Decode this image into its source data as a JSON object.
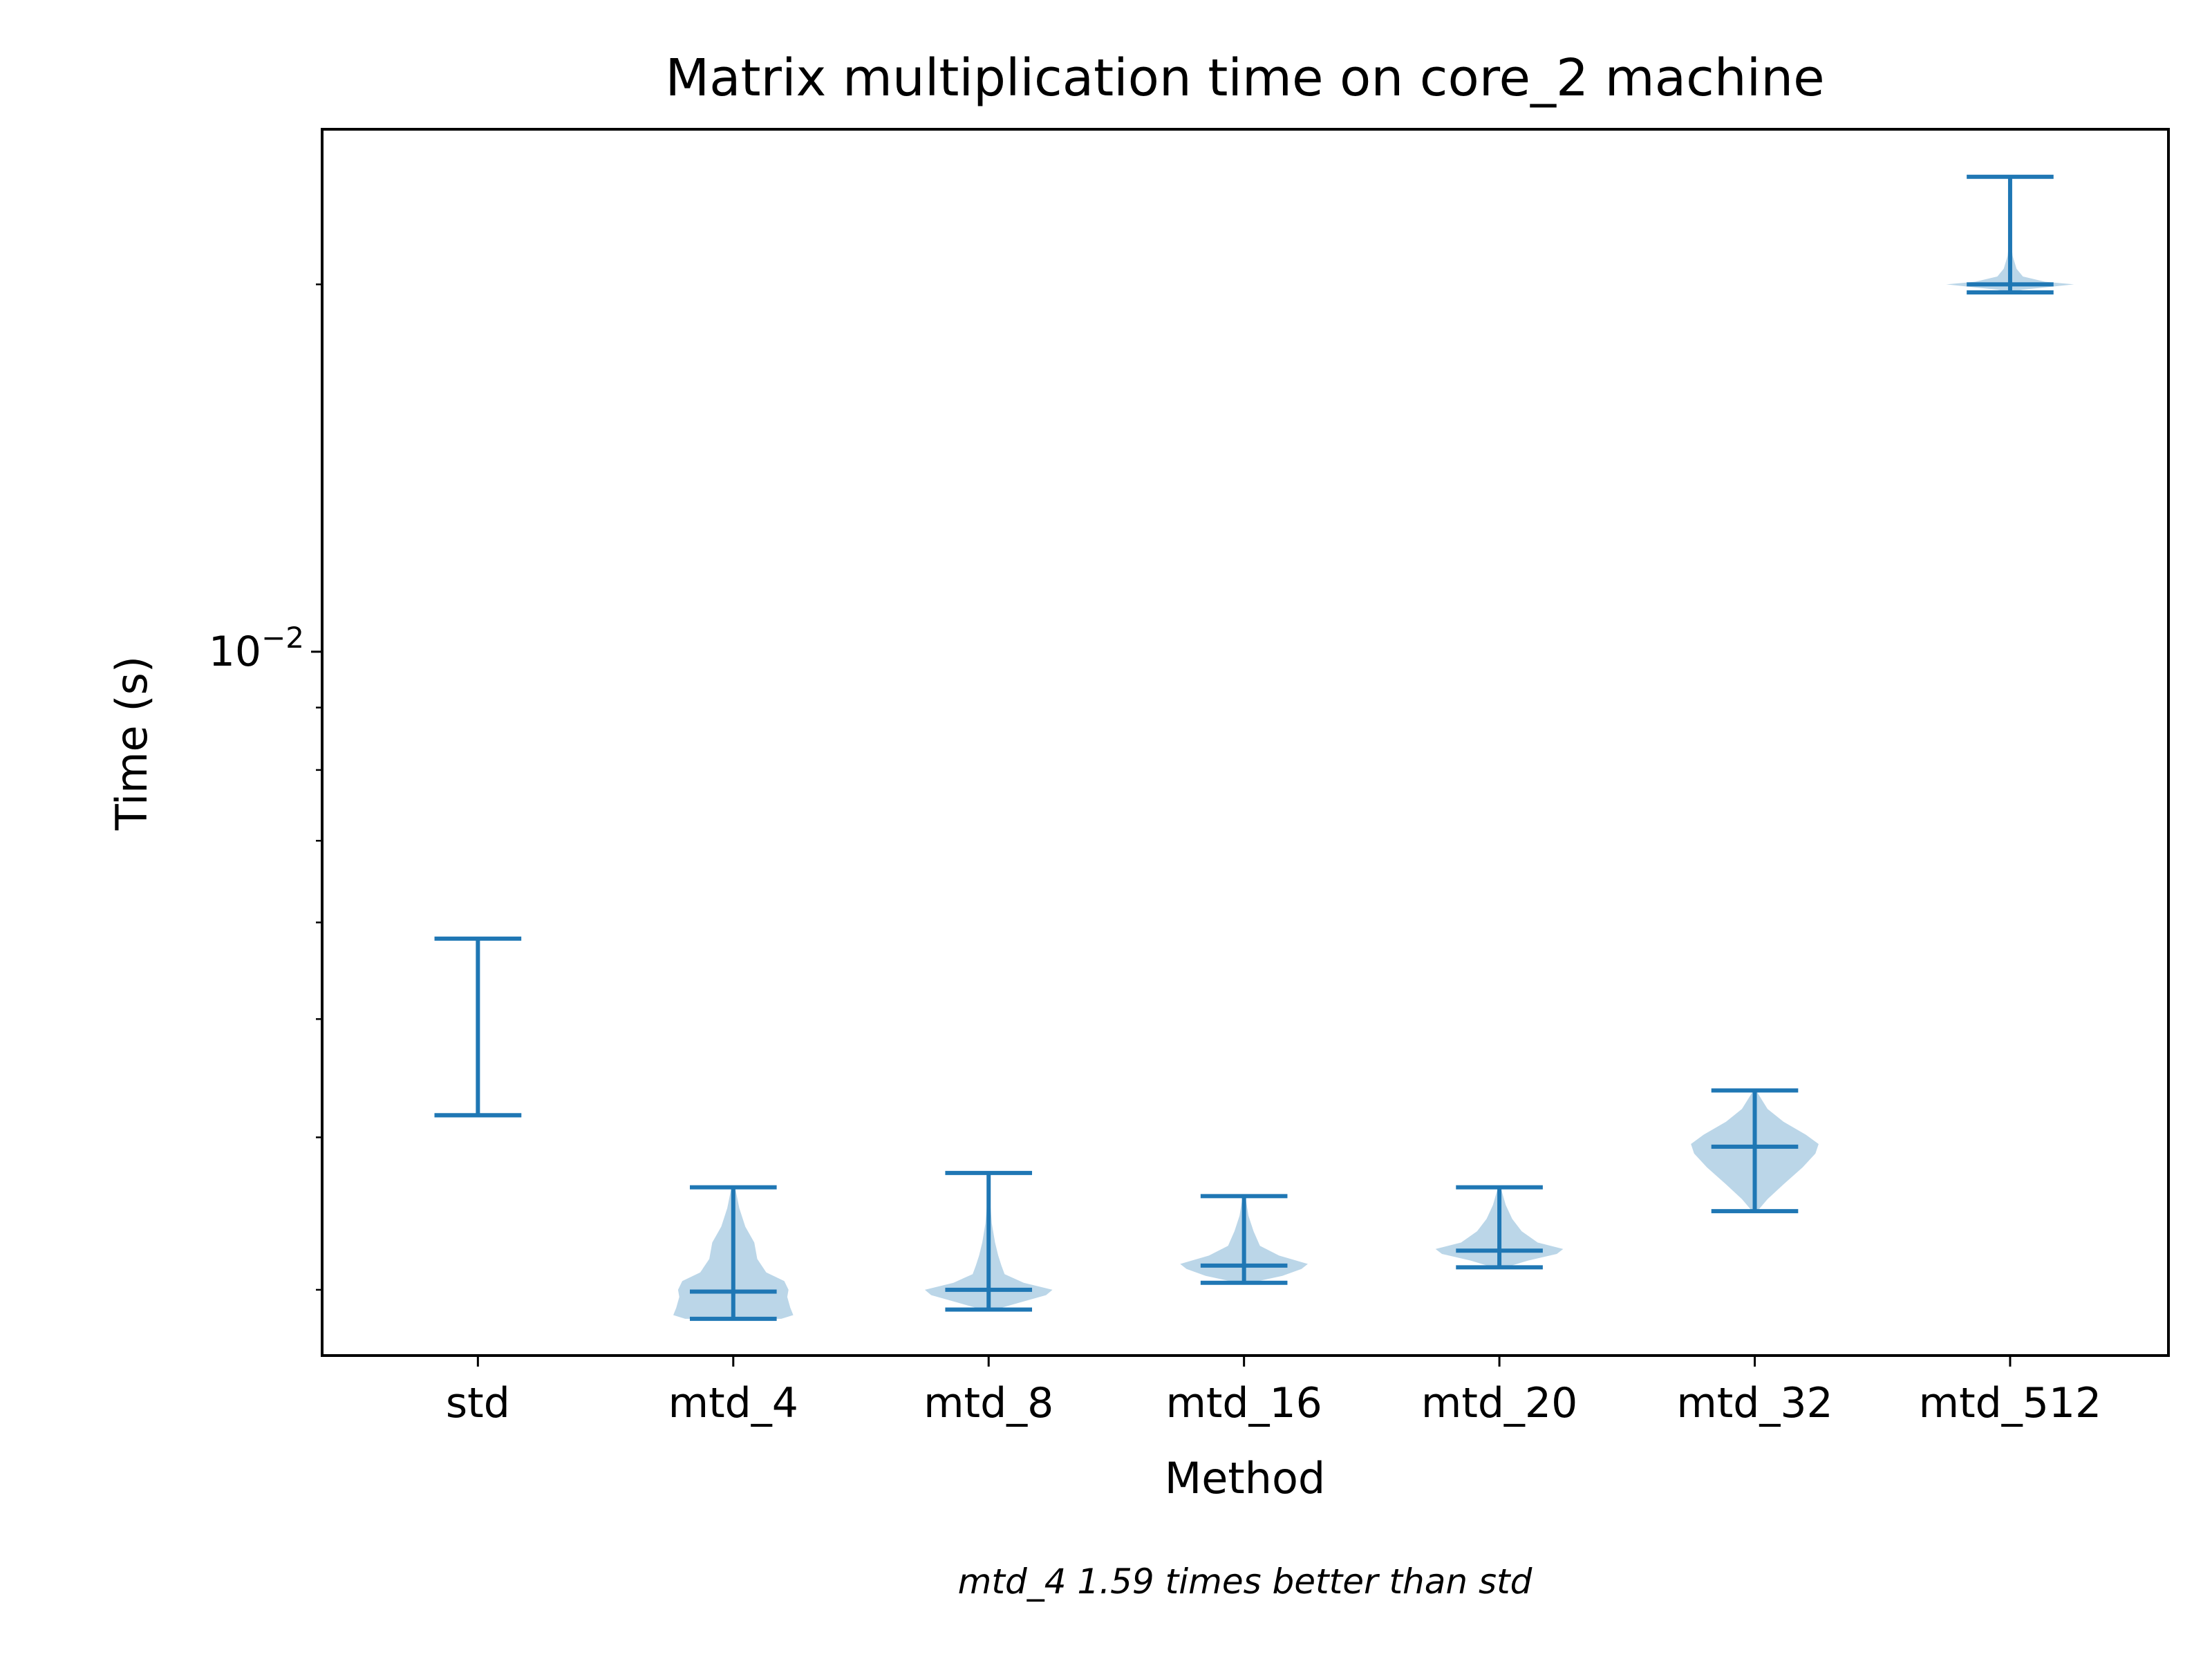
{
  "chart_data": {
    "type": "violin",
    "title": "Matrix multiplication time on core_2 machine",
    "xlabel": "Method",
    "ylabel": "Time (s)",
    "yscale": "log",
    "ylim": [
      0.00265,
      0.0268
    ],
    "y_major_tick": {
      "value": 0.01,
      "base": "10",
      "exponent": "−2"
    },
    "y_minor_ticks": [
      0.003,
      0.004,
      0.005,
      0.006,
      0.007,
      0.008,
      0.009,
      0.02
    ],
    "categories": [
      "std",
      "mtd_4",
      "mtd_8",
      "mtd_16",
      "mtd_20",
      "mtd_32",
      "mtd_512"
    ],
    "series": [
      {
        "category": "std",
        "min": 0.00417,
        "max": 0.00582,
        "median": 0.00417,
        "spread": 0.25,
        "density": [
          [
            0.00416,
            0.05
          ],
          [
            0.00417,
            1.0
          ],
          [
            0.00418,
            0.05
          ]
        ]
      },
      {
        "category": "mtd_4",
        "min": 0.00284,
        "max": 0.00364,
        "median": 0.00299,
        "spread": 0.47,
        "density": [
          [
            0.00284,
            0.8
          ],
          [
            0.00286,
            1.0
          ],
          [
            0.0029,
            0.95
          ],
          [
            0.00296,
            0.9
          ],
          [
            0.003,
            0.92
          ],
          [
            0.00305,
            0.85
          ],
          [
            0.0031,
            0.55
          ],
          [
            0.00318,
            0.4
          ],
          [
            0.00328,
            0.35
          ],
          [
            0.00338,
            0.2
          ],
          [
            0.0035,
            0.1
          ],
          [
            0.00364,
            0.03
          ]
        ]
      },
      {
        "category": "mtd_8",
        "min": 0.00289,
        "max": 0.00374,
        "median": 0.003,
        "spread": 0.5,
        "density": [
          [
            0.00289,
            0.1
          ],
          [
            0.00293,
            0.5
          ],
          [
            0.00297,
            0.9
          ],
          [
            0.003,
            1.0
          ],
          [
            0.00304,
            0.55
          ],
          [
            0.00309,
            0.25
          ],
          [
            0.00314,
            0.2
          ],
          [
            0.0032,
            0.15
          ],
          [
            0.00328,
            0.1
          ],
          [
            0.0034,
            0.05
          ],
          [
            0.00356,
            0.02
          ],
          [
            0.00374,
            0.01
          ]
        ]
      },
      {
        "category": "mtd_16",
        "min": 0.00304,
        "max": 0.00358,
        "median": 0.00314,
        "spread": 0.5,
        "density": [
          [
            0.00304,
            0.1
          ],
          [
            0.00308,
            0.6
          ],
          [
            0.00312,
            0.9
          ],
          [
            0.00315,
            1.0
          ],
          [
            0.0032,
            0.55
          ],
          [
            0.00326,
            0.25
          ],
          [
            0.00335,
            0.15
          ],
          [
            0.00345,
            0.07
          ],
          [
            0.00358,
            0.02
          ]
        ]
      },
      {
        "category": "mtd_20",
        "min": 0.00313,
        "max": 0.00364,
        "median": 0.00323,
        "spread": 0.5,
        "density": [
          [
            0.00313,
            0.1
          ],
          [
            0.00317,
            0.45
          ],
          [
            0.00321,
            0.9
          ],
          [
            0.00324,
            1.0
          ],
          [
            0.00328,
            0.6
          ],
          [
            0.00335,
            0.35
          ],
          [
            0.00343,
            0.2
          ],
          [
            0.00352,
            0.1
          ],
          [
            0.00364,
            0.02
          ]
        ]
      },
      {
        "category": "mtd_32",
        "min": 0.00348,
        "max": 0.00437,
        "median": 0.00393,
        "spread": 0.5,
        "density": [
          [
            0.00348,
            0.04
          ],
          [
            0.00356,
            0.2
          ],
          [
            0.00366,
            0.45
          ],
          [
            0.00378,
            0.75
          ],
          [
            0.00388,
            0.95
          ],
          [
            0.00395,
            1.0
          ],
          [
            0.00402,
            0.8
          ],
          [
            0.00412,
            0.45
          ],
          [
            0.00422,
            0.2
          ],
          [
            0.00437,
            0.02
          ]
        ]
      },
      {
        "category": "mtd_512",
        "min": 0.0197,
        "max": 0.0245,
        "median": 0.02,
        "spread": 0.5,
        "density": [
          [
            0.0197,
            0.02
          ],
          [
            0.0198,
            0.2
          ],
          [
            0.0199,
            0.6
          ],
          [
            0.02,
            1.0
          ],
          [
            0.0201,
            0.55
          ],
          [
            0.0203,
            0.2
          ],
          [
            0.0206,
            0.1
          ],
          [
            0.0211,
            0.04
          ],
          [
            0.0218,
            0.01
          ]
        ]
      }
    ],
    "colors": {
      "stats": "#1f77b4",
      "body": "#1f77b4",
      "body_opacity": 0.3
    },
    "grid": false,
    "legend": "none"
  },
  "annotation": "mtd_4 1.59 times better than std"
}
